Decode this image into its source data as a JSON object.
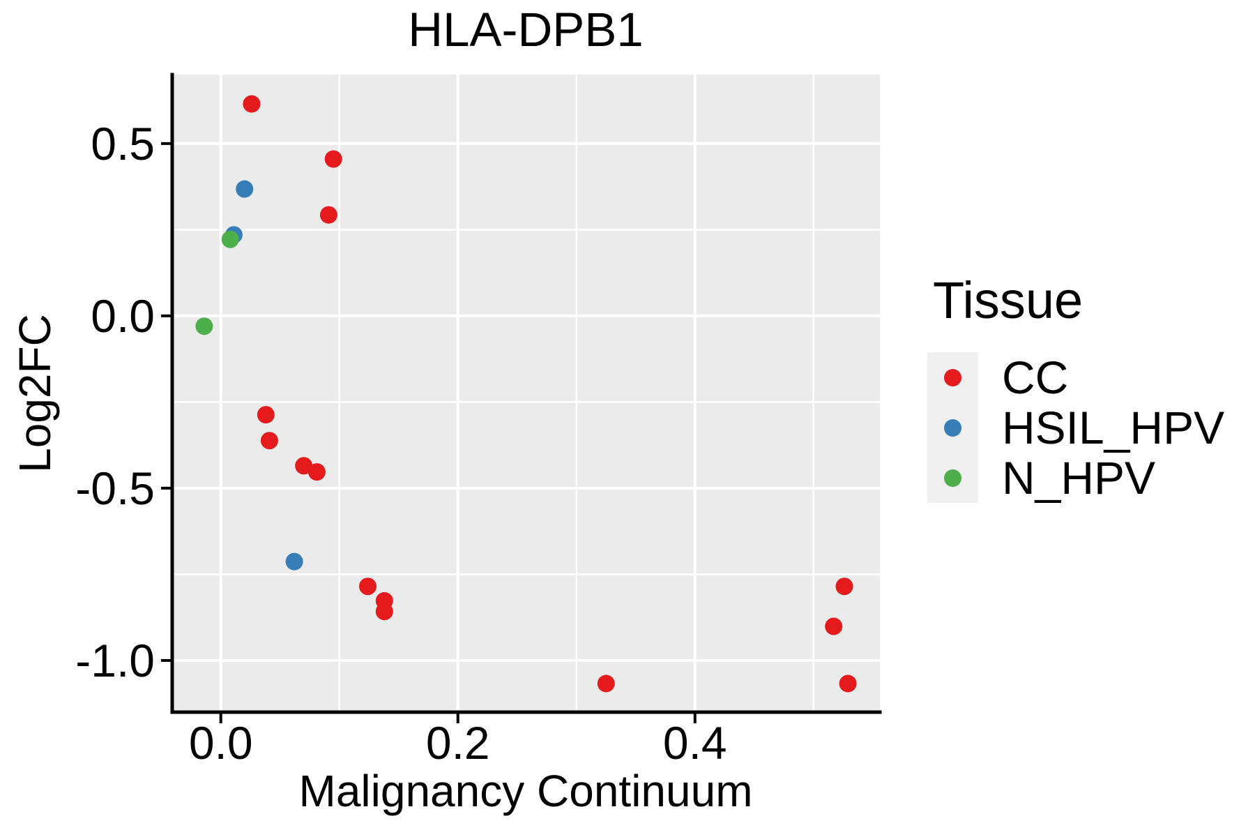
{
  "title": "HLA-DPB1",
  "legend": {
    "title": "Tissue",
    "position": "right"
  },
  "chart_data": {
    "type": "scatter",
    "title": "HLA-DPB1",
    "xlabel": "Malignancy Continuum",
    "ylabel": "Log2FC",
    "xlim": [
      -0.041,
      0.556
    ],
    "ylim": [
      -1.15,
      0.7
    ],
    "grid": "on",
    "legend_position": "right",
    "x_ticks": [
      {
        "v": 0.0,
        "label": "0.0"
      },
      {
        "v": 0.2,
        "label": "0.2"
      },
      {
        "v": 0.4,
        "label": "0.4"
      }
    ],
    "y_ticks": [
      {
        "v": 0.5,
        "label": "0.5"
      },
      {
        "v": 0.0,
        "label": "0.0"
      },
      {
        "v": -0.5,
        "label": "-0.5"
      },
      {
        "v": -1.0,
        "label": "-1.0"
      }
    ],
    "x_minor_gridlines": [
      0.1,
      0.3,
      0.5
    ],
    "y_minor_gridlines": [
      0.25,
      -0.25,
      -0.75
    ],
    "series": [
      {
        "name": "CC",
        "color": "#E41A1C",
        "points": [
          [
            0.026,
            0.615
          ],
          [
            0.095,
            0.455
          ],
          [
            0.091,
            0.293
          ],
          [
            0.038,
            -0.287
          ],
          [
            0.041,
            -0.362
          ],
          [
            0.07,
            -0.435
          ],
          [
            0.081,
            -0.453
          ],
          [
            0.124,
            -0.785
          ],
          [
            0.138,
            -0.827
          ],
          [
            0.138,
            -0.858
          ],
          [
            0.325,
            -1.067
          ],
          [
            0.526,
            -0.785
          ],
          [
            0.517,
            -0.901
          ],
          [
            0.529,
            -1.067
          ]
        ]
      },
      {
        "name": "HSIL_HPV",
        "color": "#377EB8",
        "points": [
          [
            0.02,
            0.368
          ],
          [
            0.011,
            0.235
          ],
          [
            0.062,
            -0.713
          ]
        ]
      },
      {
        "name": "N_HPV",
        "color": "#4DAF4A",
        "points": [
          [
            0.008,
            0.222
          ],
          [
            -0.014,
            -0.03
          ]
        ]
      }
    ],
    "style": {
      "panel_bg": "#EBEBEB",
      "grid_color": "#FFFFFF",
      "axis_color": "#000000",
      "point_radius": 12.5
    }
  }
}
